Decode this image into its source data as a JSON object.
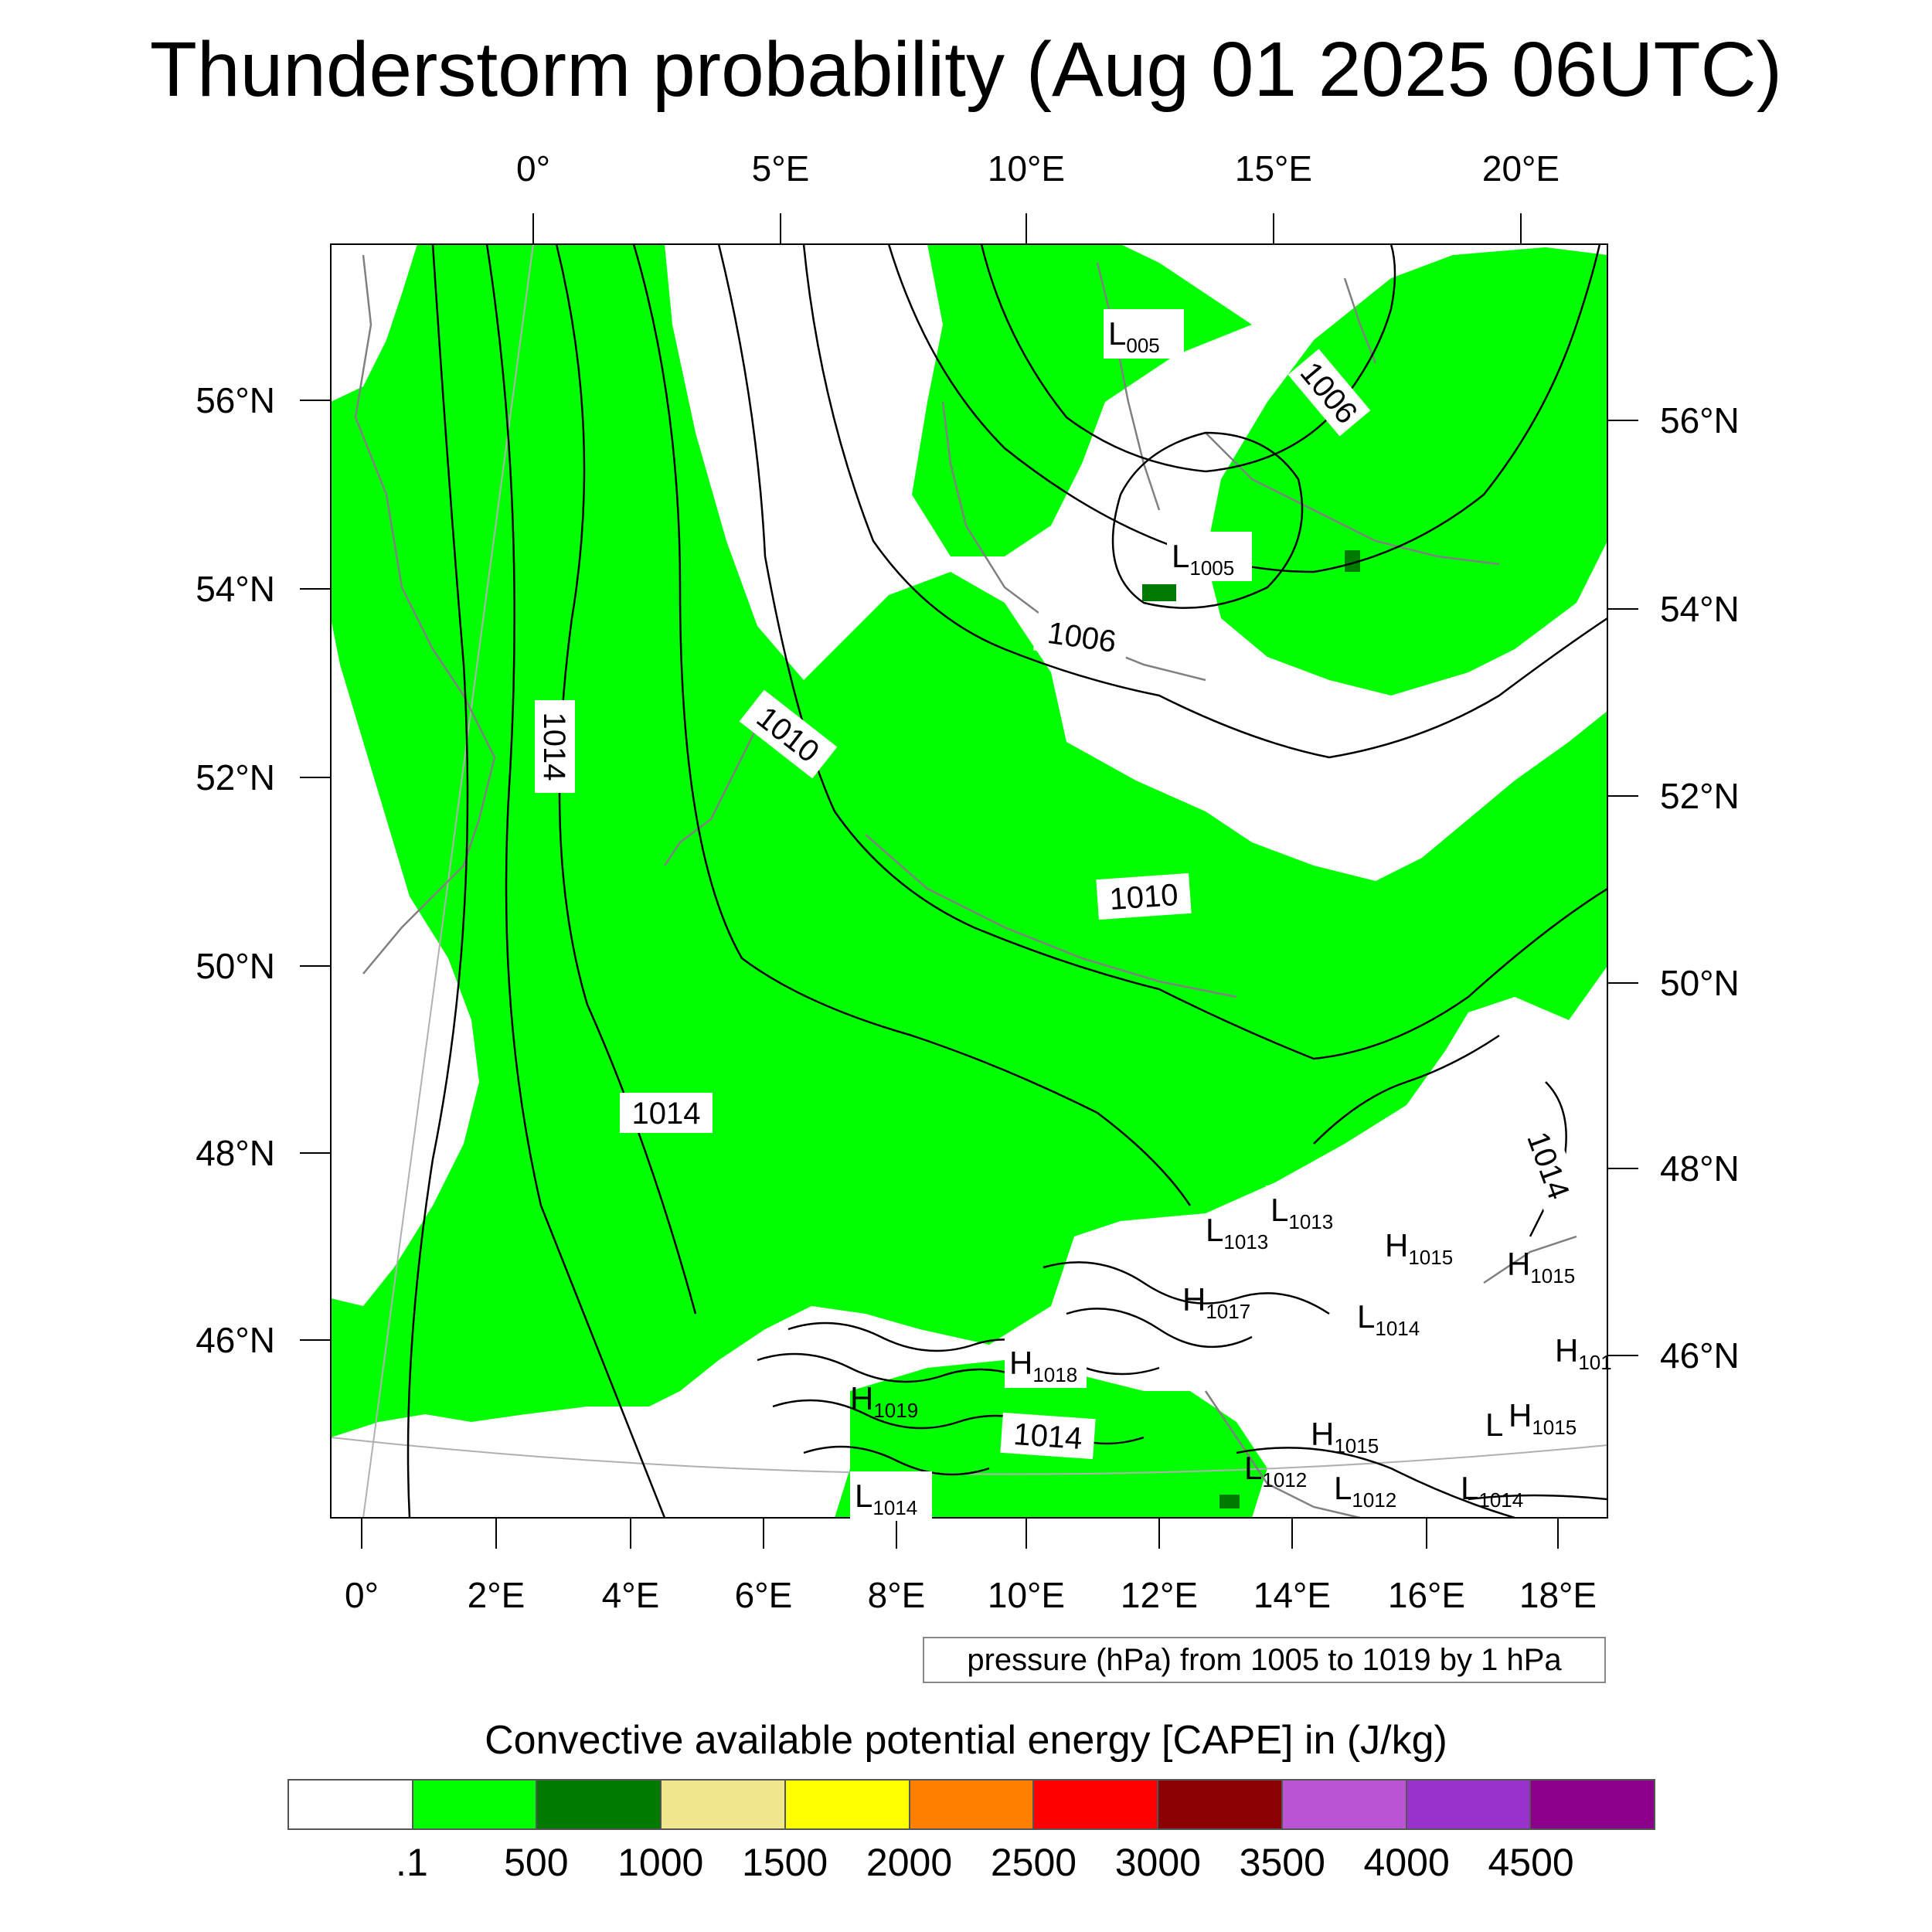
{
  "title": "Thunderstorm probability (Aug 01 2025 06UTC)",
  "top_lon_labels": [
    "0°",
    "5°E",
    "10°E",
    "15°E",
    "20°E"
  ],
  "bottom_lon_labels": [
    "0°",
    "2°E",
    "4°E",
    "6°E",
    "8°E",
    "10°E",
    "12°E",
    "14°E",
    "16°E",
    "18°E"
  ],
  "left_lat_labels": [
    "56°N",
    "54°N",
    "52°N",
    "50°N",
    "48°N",
    "46°N"
  ],
  "right_lat_labels": [
    "56°N",
    "54°N",
    "52°N",
    "50°N",
    "48°N",
    "46°N"
  ],
  "isobar_labels": [
    {
      "text": "1006"
    },
    {
      "text": "1006"
    },
    {
      "text": "1010"
    },
    {
      "text": "1010"
    },
    {
      "text": "1014"
    },
    {
      "text": "1014"
    },
    {
      "text": "1014"
    },
    {
      "text": "1014"
    }
  ],
  "pressure_centers": [
    {
      "letter": "L",
      "value": "005"
    },
    {
      "letter": "L",
      "value": "1005"
    },
    {
      "letter": "L",
      "value": "1013"
    },
    {
      "letter": "L",
      "value": "1013"
    },
    {
      "letter": "H",
      "value": "1015"
    },
    {
      "letter": "H",
      "value": "1015"
    },
    {
      "letter": "H",
      "value": "1017"
    },
    {
      "letter": "L",
      "value": "1014"
    },
    {
      "letter": "H",
      "value": "101"
    },
    {
      "letter": "H",
      "value": "1018"
    },
    {
      "letter": "H",
      "value": "1019"
    },
    {
      "letter": "H",
      "value": "1015"
    },
    {
      "letter": "L",
      "value": ""
    },
    {
      "letter": "H",
      "value": "1015"
    },
    {
      "letter": "L",
      "value": "1012"
    },
    {
      "letter": "L",
      "value": "1012"
    },
    {
      "letter": "L",
      "value": "1014"
    },
    {
      "letter": "L",
      "value": "1014"
    }
  ],
  "pressure_note": "pressure (hPa) from 1005 to 1019 by 1 hPa",
  "colorbar": {
    "title": "Convective available potential energy [CAPE] in (J/kg)",
    "colors": [
      "#ffffff",
      "#00ff00",
      "#007a00",
      "#f0e68c",
      "#ffff00",
      "#ff8000",
      "#ff0000",
      "#8b0000",
      "#ba55d3",
      "#9932cc",
      "#8b008b"
    ],
    "labels": [
      ".1",
      "500",
      "1000",
      "1500",
      "2000",
      "2500",
      "3000",
      "3500",
      "4000",
      "4500"
    ]
  },
  "map_colors": {
    "cape_green": "#00ff00",
    "cape_dark_green": "#007a00",
    "isobar": "#000000",
    "coastline": "#808080",
    "graticule": "#b0b0b0"
  }
}
